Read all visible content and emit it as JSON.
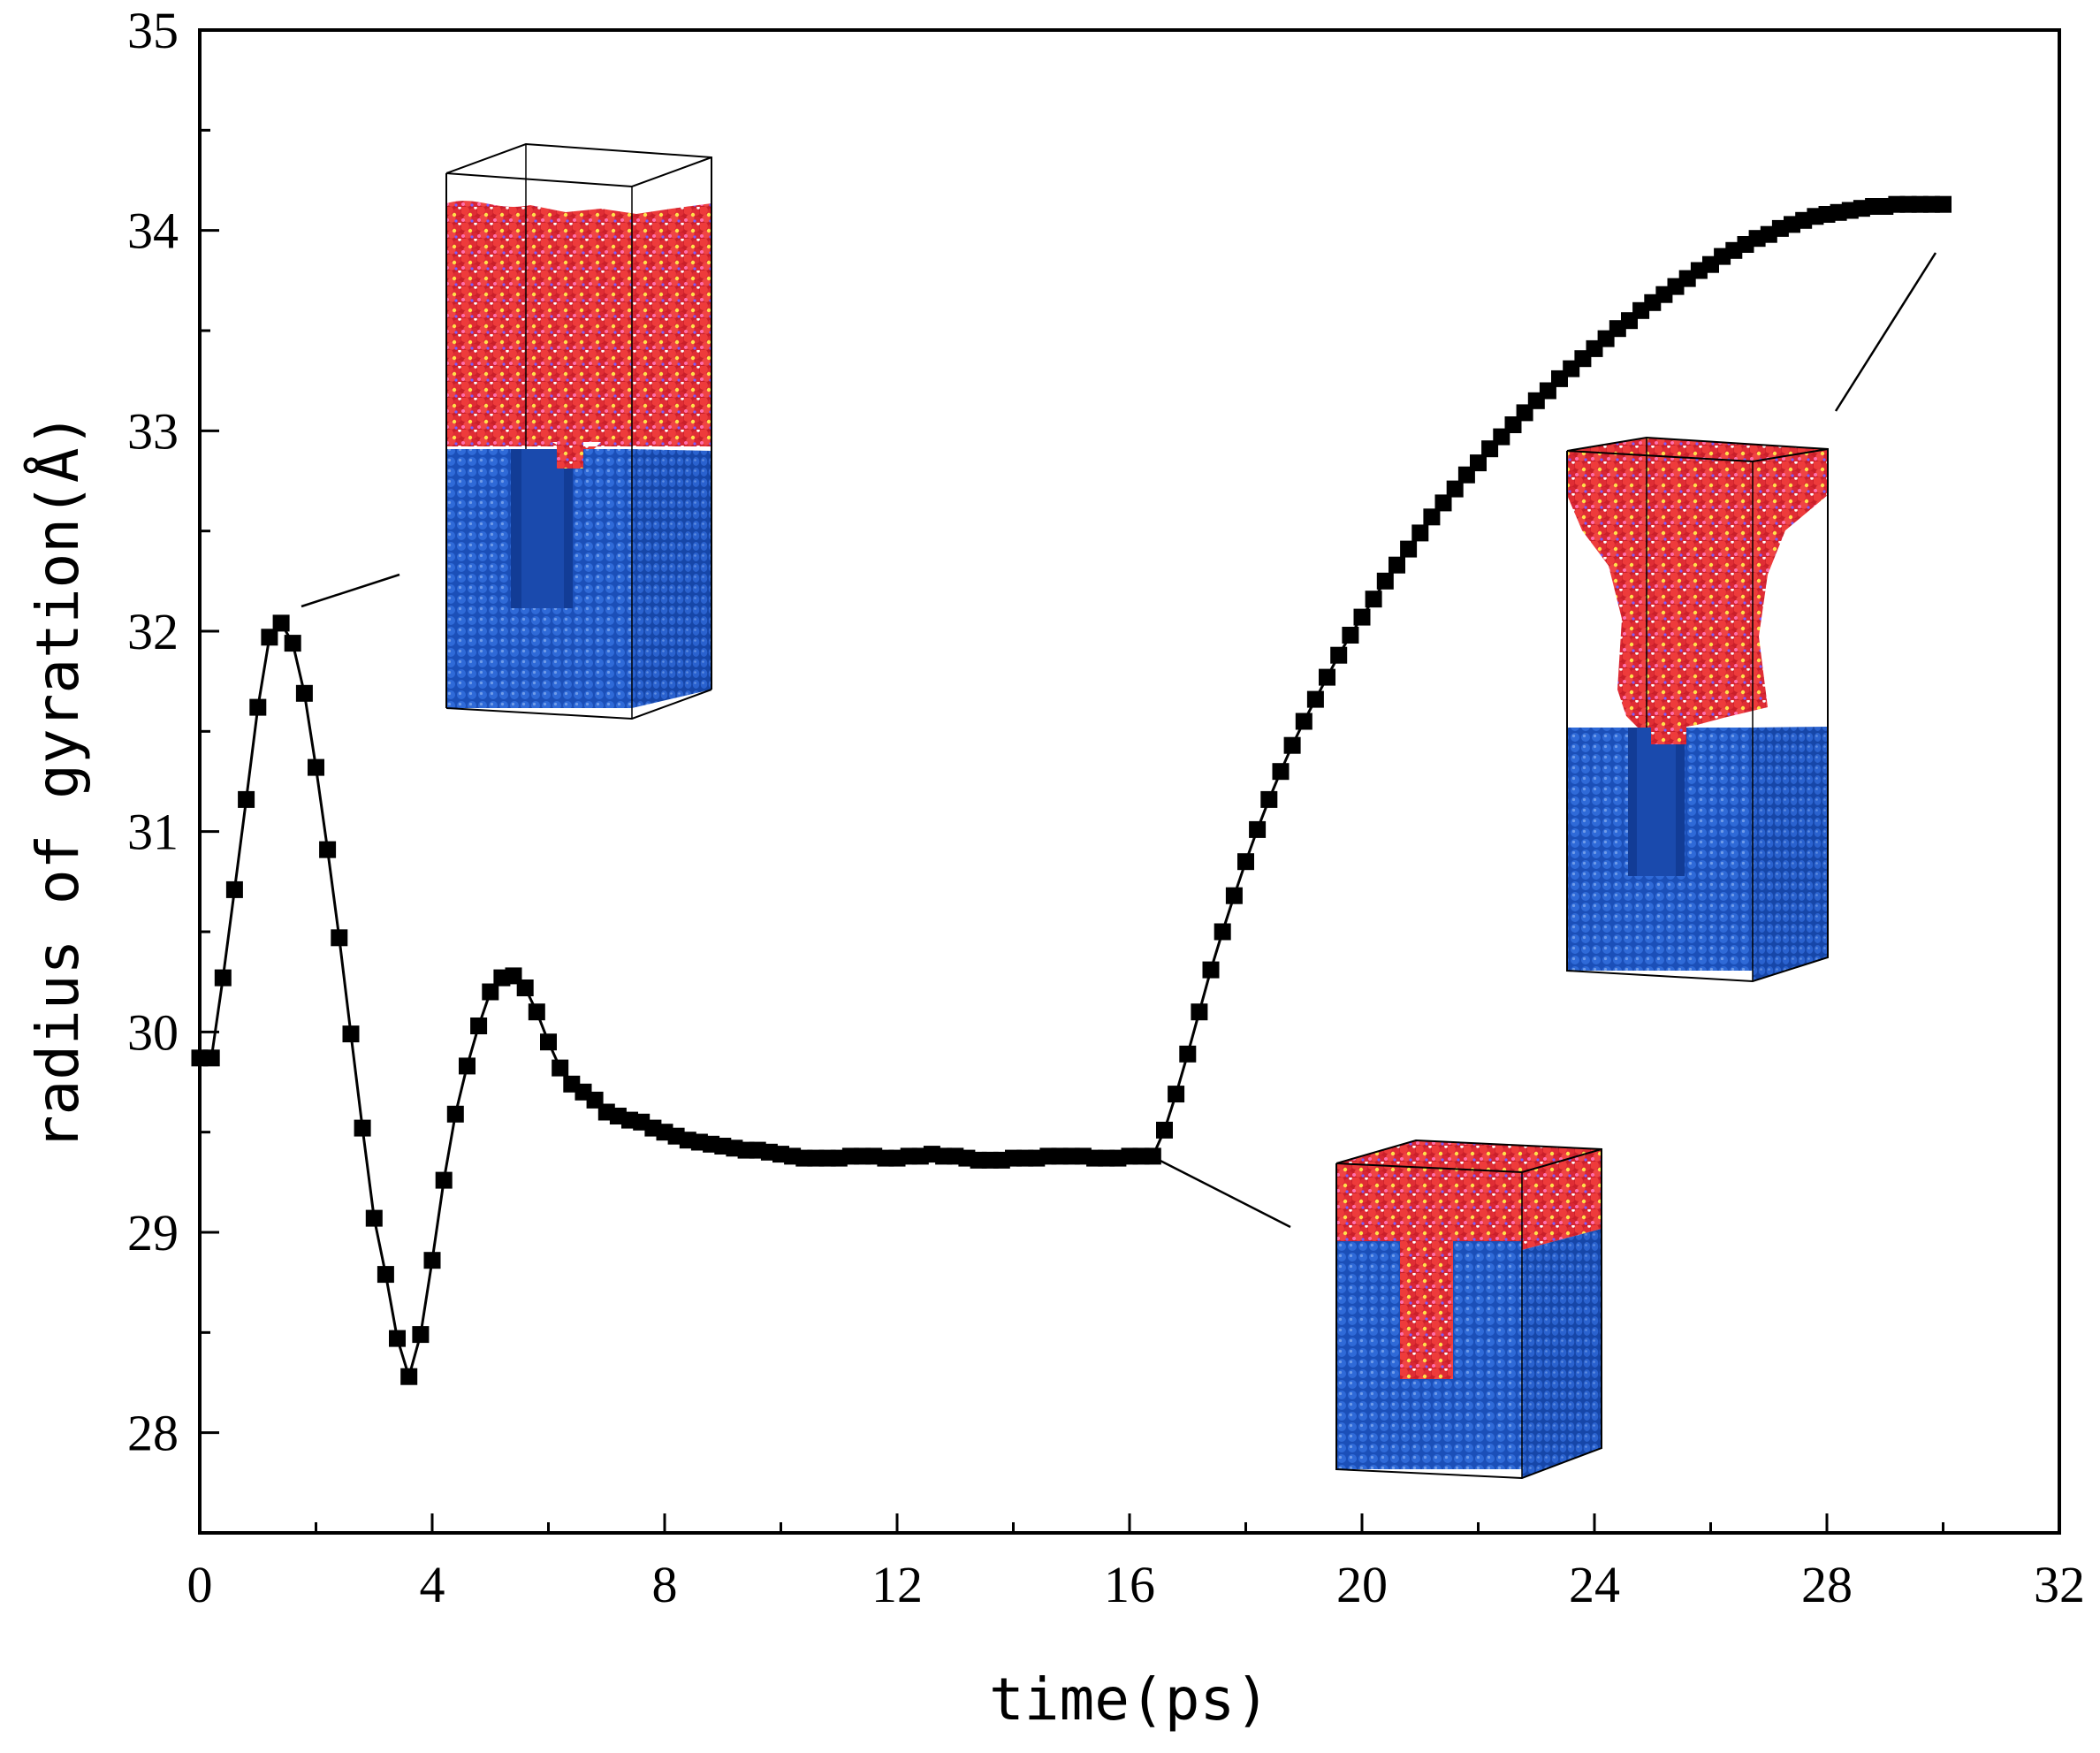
{
  "chart_data": {
    "type": "scatter",
    "title": "",
    "xlabel": "time(ps)",
    "ylabel": "radius of gyration(Å)",
    "xlim": [
      0,
      32
    ],
    "ylim": [
      27.5,
      35
    ],
    "xticks": [
      "0",
      "4",
      "8",
      "12",
      "16",
      "20",
      "24",
      "28",
      "32"
    ],
    "yticks": [
      "28",
      "29",
      "30",
      "31",
      "32",
      "33",
      "34",
      "35"
    ],
    "grid": false,
    "legend": "none",
    "colors": {
      "series": "#000000",
      "substrate": "#1f55c4",
      "liquid": "#e8302f"
    },
    "series": [
      {
        "x": [
          0.0,
          0.2,
          0.4,
          0.6,
          0.8,
          1.0,
          1.2,
          1.4,
          1.6,
          1.8,
          2.0,
          2.2,
          2.4,
          2.6,
          2.8,
          3.0,
          3.2,
          3.4,
          3.6,
          3.8,
          4.0,
          4.2,
          4.4,
          4.6,
          4.8,
          5.0,
          5.2,
          5.4,
          5.6,
          5.8,
          6.0,
          6.2,
          6.4,
          6.6,
          6.8,
          7.0,
          7.2,
          7.4,
          7.6,
          7.8,
          8.0,
          8.2,
          8.4,
          8.6,
          8.8,
          9.0,
          9.2,
          9.4,
          9.6,
          9.8,
          10.0,
          10.2,
          10.4,
          10.6,
          10.8,
          11.0,
          11.2,
          11.4,
          11.6,
          11.8,
          12.0,
          12.2,
          12.4,
          12.6,
          12.8,
          13.0,
          13.2,
          13.4,
          13.6,
          13.8,
          14.0,
          14.2,
          14.4,
          14.6,
          14.8,
          15.0,
          15.2,
          15.4,
          15.6,
          15.8,
          16.0,
          16.2,
          16.4,
          16.6,
          16.8,
          17.0,
          17.2,
          17.4,
          17.6,
          17.8,
          18.0,
          18.2,
          18.4,
          18.6,
          18.8,
          19.0,
          19.2,
          19.4,
          19.6,
          19.8,
          20.0,
          20.2,
          20.4,
          20.6,
          20.8,
          21.0,
          21.2,
          21.4,
          21.6,
          21.8,
          22.0,
          22.2,
          22.4,
          22.6,
          22.8,
          23.0,
          23.2,
          23.4,
          23.6,
          23.8,
          24.0,
          24.2,
          24.4,
          24.6,
          24.8,
          25.0,
          25.2,
          25.4,
          25.6,
          25.8,
          26.0,
          26.2,
          26.4,
          26.6,
          26.8,
          27.0,
          27.2,
          27.4,
          27.6,
          27.8,
          28.0,
          28.2,
          28.4,
          28.6,
          28.8,
          29.0,
          29.2,
          29.4,
          29.6,
          29.8,
          30.0
        ],
        "y": [
          29.87,
          29.87,
          30.27,
          30.71,
          31.16,
          31.62,
          31.97,
          32.04,
          31.94,
          31.69,
          31.32,
          30.91,
          30.47,
          29.99,
          29.52,
          29.07,
          28.79,
          28.47,
          28.28,
          28.49,
          28.86,
          29.26,
          29.59,
          29.83,
          30.03,
          30.2,
          30.27,
          30.28,
          30.22,
          30.1,
          29.95,
          29.82,
          29.74,
          29.7,
          29.66,
          29.6,
          29.58,
          29.56,
          29.55,
          29.52,
          29.5,
          29.48,
          29.46,
          29.45,
          29.44,
          29.43,
          29.42,
          29.41,
          29.41,
          29.4,
          29.39,
          29.38,
          29.37,
          29.37,
          29.37,
          29.37,
          29.38,
          29.38,
          29.38,
          29.37,
          29.37,
          29.38,
          29.38,
          29.39,
          29.38,
          29.38,
          29.37,
          29.36,
          29.36,
          29.36,
          29.37,
          29.37,
          29.37,
          29.38,
          29.38,
          29.38,
          29.38,
          29.37,
          29.37,
          29.37,
          29.38,
          29.38,
          29.38,
          29.51,
          29.69,
          29.89,
          30.1,
          30.31,
          30.5,
          30.68,
          30.85,
          31.01,
          31.16,
          31.3,
          31.43,
          31.55,
          31.66,
          31.77,
          31.88,
          31.98,
          32.07,
          32.16,
          32.25,
          32.33,
          32.41,
          32.49,
          32.57,
          32.64,
          32.71,
          32.78,
          32.84,
          32.91,
          32.97,
          33.03,
          33.09,
          33.15,
          33.2,
          33.26,
          33.31,
          33.36,
          33.41,
          33.46,
          33.51,
          33.55,
          33.6,
          33.64,
          33.68,
          33.72,
          33.76,
          33.8,
          33.83,
          33.87,
          33.9,
          33.93,
          33.96,
          33.98,
          34.01,
          34.03,
          34.05,
          34.07,
          34.08,
          34.09,
          34.1,
          34.11,
          34.12,
          34.12,
          34.13,
          34.13,
          34.13,
          34.13,
          34.13
        ]
      }
    ]
  }
}
